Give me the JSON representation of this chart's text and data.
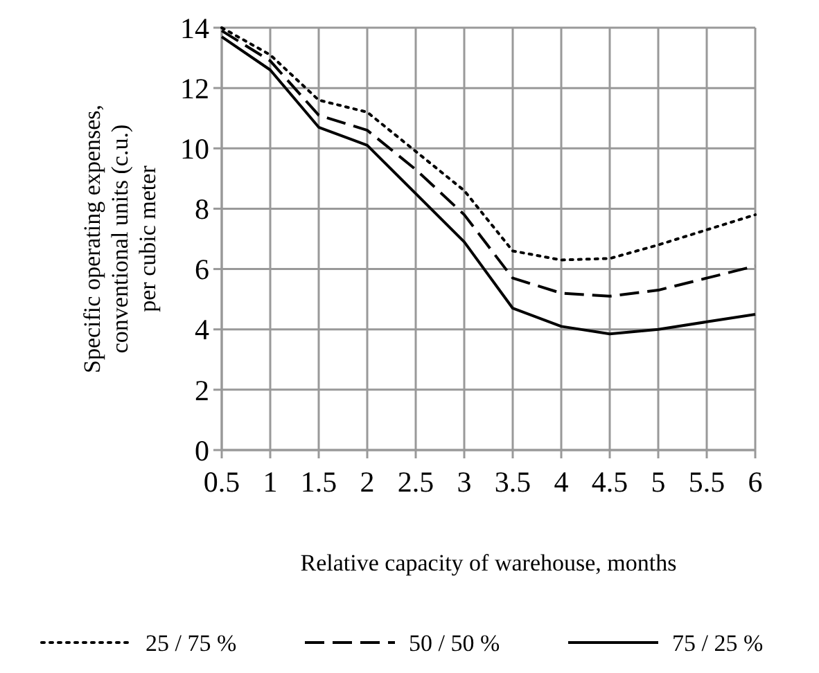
{
  "chart_data": {
    "type": "line",
    "xlabel": "Relative capacity of warehouse, months",
    "ylabel": "Specific operating expenses, conventional units (c.u.) per cubic meter",
    "categories": [
      "0.5",
      "1",
      "1.5",
      "2",
      "2.5",
      "3",
      "3.5",
      "4",
      "4.5",
      "5",
      "5.5",
      "6"
    ],
    "ylim": [
      0,
      14
    ],
    "yticks": [
      0,
      2,
      4,
      6,
      8,
      10,
      12,
      14
    ],
    "grid": true,
    "legend": "bottom",
    "marker": "none",
    "series": [
      {
        "name": "25 / 75 %",
        "color": "#000000",
        "line_style": "dotted",
        "values": [
          14,
          13.1,
          11.6,
          11.2,
          9.9,
          8.6,
          6.6,
          6.3,
          6.35,
          6.8,
          7.3,
          7.8
        ]
      },
      {
        "name": "50 / 50 %",
        "color": "#000000",
        "line_style": "dashed",
        "values": [
          13.9,
          12.9,
          11.1,
          10.6,
          9.3,
          7.8,
          5.7,
          5.2,
          5.1,
          5.3,
          5.7,
          6.1
        ]
      },
      {
        "name": "75 / 25 %",
        "color": "#000000",
        "line_style": "solid",
        "values": [
          13.7,
          12.6,
          10.7,
          10.1,
          8.5,
          6.9,
          4.7,
          4.1,
          3.85,
          4.0,
          4.25,
          4.5
        ]
      }
    ]
  }
}
